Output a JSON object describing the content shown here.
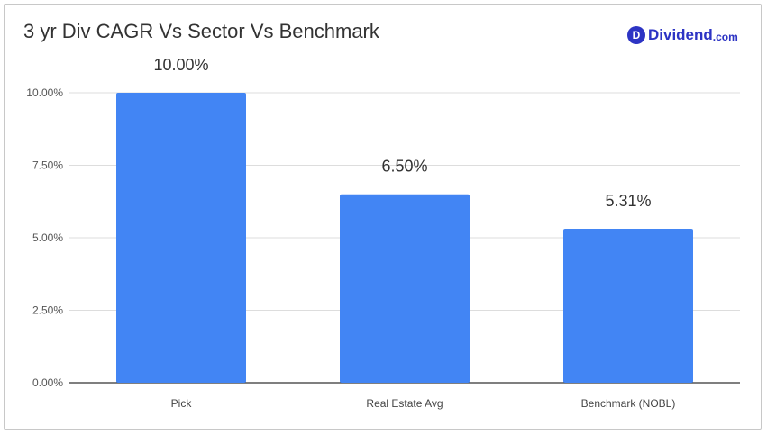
{
  "header": {
    "title": "3 yr Div CAGR Vs Sector Vs Benchmark",
    "logo": {
      "icon_letter": "D",
      "main": "Dividend",
      "suffix": ".com",
      "icon": "dividend-logo-icon"
    }
  },
  "colors": {
    "bar": "#4285f4",
    "grid": "#dddddd",
    "axis": "#333333",
    "brand": "#2d34c4"
  },
  "chart_data": {
    "type": "bar",
    "title": "3 yr Div CAGR Vs Sector Vs Benchmark",
    "categories": [
      "Pick",
      "Real Estate Avg",
      "Benchmark (NOBL)"
    ],
    "values": [
      10.0,
      6.5,
      5.31
    ],
    "data_labels": [
      "10.00%",
      "6.50%",
      "5.31%"
    ],
    "yticks": [
      "0.00%",
      "2.50%",
      "5.00%",
      "7.50%",
      "10.00%"
    ],
    "ytick_values": [
      0,
      2.5,
      5,
      7.5,
      10
    ],
    "ylim": [
      0,
      10
    ],
    "xlabel": "",
    "ylabel": "",
    "grid": true,
    "legend": "none"
  }
}
